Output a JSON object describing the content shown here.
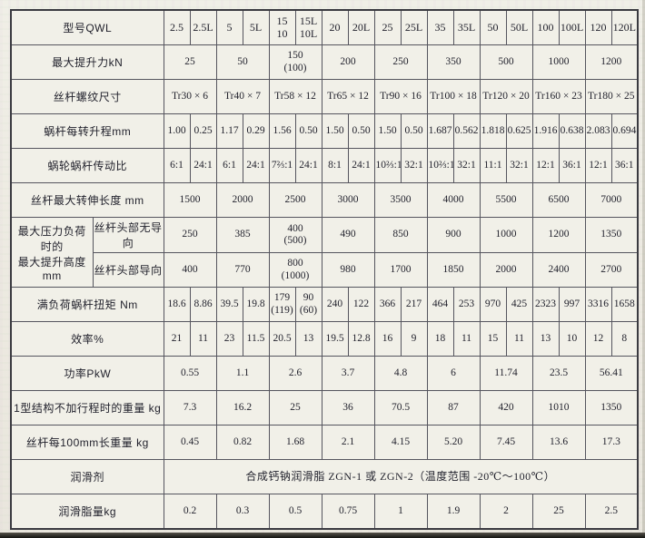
{
  "table": {
    "rows": [
      {
        "id": "model",
        "label": "型号QWL",
        "cellSpan": 1,
        "cells": [
          "2.5",
          "2.5L",
          "5",
          "5L",
          "15\n10",
          "15L\n10L",
          "20",
          "20L",
          "25",
          "25L",
          "35",
          "35L",
          "50",
          "50L",
          "100",
          "100L",
          "120",
          "120L"
        ]
      },
      {
        "id": "max-lift-force",
        "label": "最大提升力kN",
        "cellSpan": 2,
        "cells": [
          "25",
          "50",
          "150\n(100)",
          "200",
          "250",
          "350",
          "500",
          "1000",
          "1200"
        ]
      },
      {
        "id": "thread-size",
        "label": "丝杆螺纹尺寸",
        "cellSpan": 2,
        "cells": [
          "Tr30 × 6",
          "Tr40 × 7",
          "Tr58 × 12",
          "Tr65 × 12",
          "Tr90 × 16",
          "Tr100 × 18",
          "Tr120 × 20",
          "Tr160 × 23",
          "Tr180 × 25"
        ]
      },
      {
        "id": "lead-per-rev",
        "label": "蜗杆每转升程mm",
        "cellSpan": 1,
        "cells": [
          "1.00",
          "0.25",
          "1.17",
          "0.29",
          "1.56",
          "0.50",
          "1.50",
          "0.50",
          "1.50",
          "0.50",
          "1.687",
          "0.562",
          "1.818",
          "0.625",
          "1.916",
          "0.638",
          "2.083",
          "0.694"
        ]
      },
      {
        "id": "gear-ratio",
        "label": "蜗轮蜗杆传动比",
        "cellSpan": 1,
        "cells": [
          "6:1",
          "24:1",
          "6:1",
          "24:1",
          "7⅔:1",
          "24:1",
          "8:1",
          "24:1",
          "10⅔:1",
          "32:1",
          "10⅔:1",
          "32:1",
          "11:1",
          "32:1",
          "12:1",
          "36:1",
          "12:1",
          "36:1"
        ]
      },
      {
        "id": "max-screw-length",
        "label": "丝杆最大转伸长度 mm",
        "cellSpan": 2,
        "cells": [
          "1500",
          "2000",
          "2500",
          "3000",
          "3500",
          "4000",
          "5500",
          "6500",
          "7000"
        ]
      },
      {
        "id": "lift-height-unguided",
        "label": "最大压力负荷时的\n最大提升高度 mm",
        "labelRowspan": 2,
        "sublabel": "丝杆头部无导向",
        "cellSpan": 2,
        "cells": [
          "250",
          "385",
          "400\n(500)",
          "490",
          "850",
          "900",
          "1000",
          "1200",
          "1350"
        ]
      },
      {
        "id": "lift-height-guided",
        "sublabel": "丝杆头部导向",
        "cellSpan": 2,
        "cells": [
          "400",
          "770",
          "800\n(1000)",
          "980",
          "1700",
          "1850",
          "2000",
          "2400",
          "2700"
        ]
      },
      {
        "id": "full-load-torque",
        "label": "满负荷蜗杆扭矩 Nm",
        "cellSpan": 1,
        "cells": [
          "18.6",
          "8.86",
          "39.5",
          "19.8",
          "179\n(119)",
          "90\n(60)",
          "240",
          "122",
          "366",
          "217",
          "464",
          "253",
          "970",
          "425",
          "2323",
          "997",
          "3316",
          "1658"
        ]
      },
      {
        "id": "efficiency",
        "label": "效率%",
        "cellSpan": 1,
        "cells": [
          "21",
          "11",
          "23",
          "11.5",
          "20.5",
          "13",
          "19.5",
          "12.8",
          "16",
          "9",
          "18",
          "11",
          "15",
          "11",
          "13",
          "10",
          "12",
          "8"
        ]
      },
      {
        "id": "power",
        "label": "功率PkW",
        "cellSpan": 2,
        "cells": [
          "0.55",
          "1.1",
          "2.6",
          "3.7",
          "4.8",
          "6",
          "11.74",
          "23.5",
          "56.41"
        ]
      },
      {
        "id": "structure-weight",
        "label": "1型结构不加行程时的重量 kg",
        "cellSpan": 2,
        "cells": [
          "7.3",
          "16.2",
          "25",
          "36",
          "70.5",
          "87",
          "420",
          "1010",
          "1350"
        ]
      },
      {
        "id": "screw-weight-per-100mm",
        "label": "丝杆每100mm长重量 kg",
        "cellSpan": 2,
        "cells": [
          "0.45",
          "0.82",
          "1.68",
          "2.1",
          "4.15",
          "5.20",
          "7.45",
          "13.6",
          "17.3"
        ]
      },
      {
        "id": "lubricant",
        "label": "润滑剂",
        "cellSpan": 18,
        "cells": [
          "合成钙钠润滑脂 ZGN-1 或 ZGN-2（温度范围 -20℃～100℃）"
        ]
      },
      {
        "id": "grease-amount",
        "label": "润滑脂量kg",
        "cellSpan": 2,
        "cells": [
          "0.2",
          "0.3",
          "0.5",
          "0.75",
          "1",
          "1.9",
          "2",
          "25",
          "2.5"
        ]
      }
    ]
  }
}
